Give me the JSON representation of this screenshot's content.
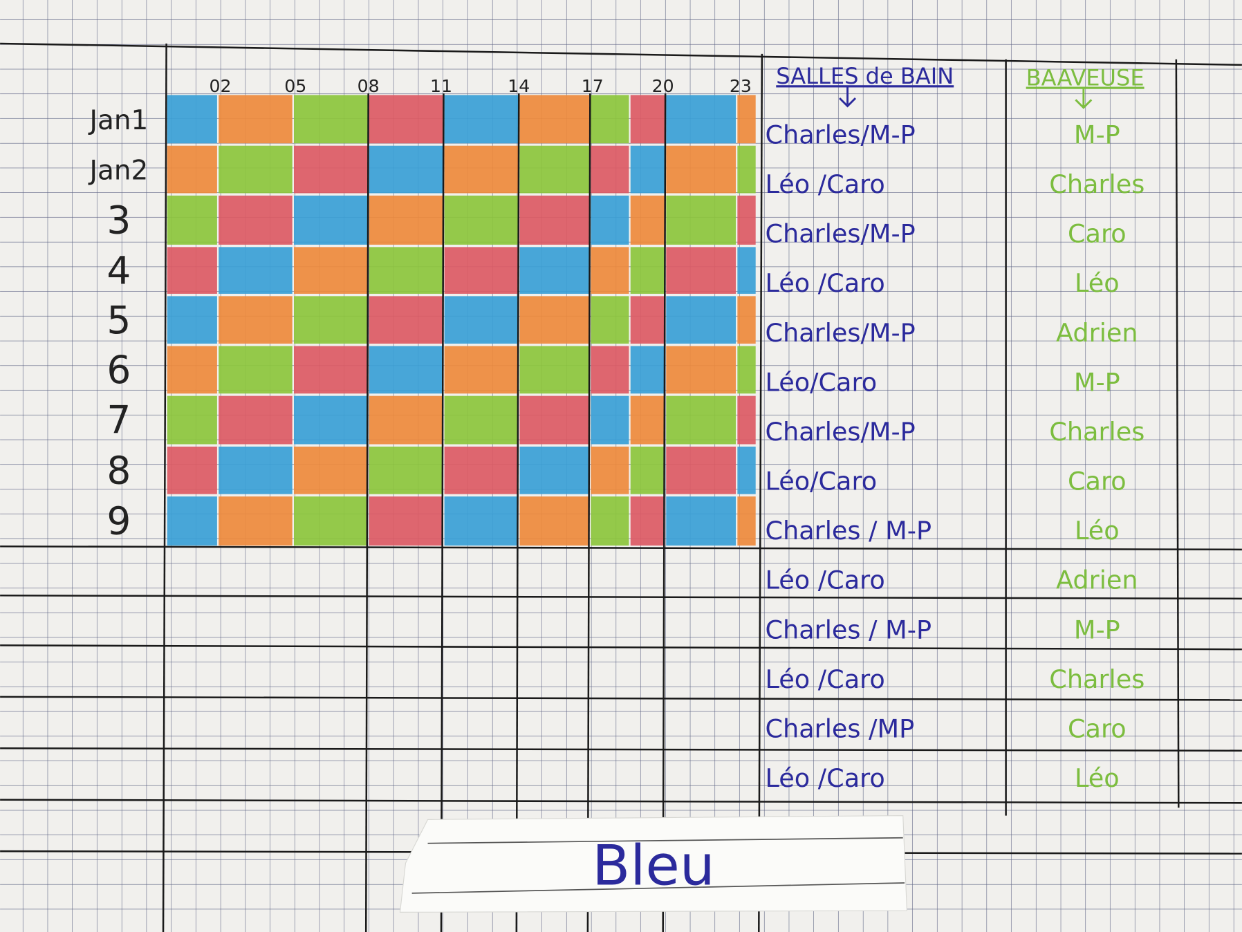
{
  "hours": [
    "02",
    "05",
    "08",
    "11",
    "14",
    "17",
    "20",
    "23"
  ],
  "days": [
    "Jan1",
    "Jan2",
    "3",
    "4",
    "5",
    "6",
    "7",
    "8",
    "9"
  ],
  "grid": {
    "palette": {
      "b": "#3a9fd6",
      "o": "#ee8a3c",
      "g": "#8cc63c",
      "r": "#dc5a64"
    },
    "rows": [
      [
        "b",
        "o",
        "g",
        "r",
        "b",
        "o",
        "g",
        "r",
        "b",
        "o"
      ],
      [
        "o",
        "g",
        "r",
        "b",
        "o",
        "g",
        "r",
        "b",
        "o",
        "g"
      ],
      [
        "g",
        "r",
        "b",
        "o",
        "g",
        "r",
        "b",
        "o",
        "g",
        "r"
      ],
      [
        "r",
        "b",
        "o",
        "g",
        "r",
        "b",
        "o",
        "g",
        "r",
        "b"
      ],
      [
        "b",
        "o",
        "g",
        "r",
        "b",
        "o",
        "g",
        "r",
        "b",
        "o"
      ],
      [
        "o",
        "g",
        "r",
        "b",
        "o",
        "g",
        "r",
        "b",
        "o",
        "g"
      ],
      [
        "g",
        "r",
        "b",
        "o",
        "g",
        "r",
        "b",
        "o",
        "g",
        "r"
      ],
      [
        "r",
        "b",
        "o",
        "g",
        "r",
        "b",
        "o",
        "g",
        "r",
        "b"
      ],
      [
        "b",
        "o",
        "g",
        "r",
        "b",
        "o",
        "g",
        "r",
        "b",
        "o"
      ]
    ]
  },
  "bathrooms": {
    "title": "SALLES de BAIN",
    "entries": [
      "Charles/M-P",
      "Léo /Caro",
      "Charles/M-P",
      "Léo /Caro",
      "Charles/M-P",
      "Léo/Caro",
      "Charles/M-P",
      "Léo/Caro",
      "Charles / M-P",
      "Léo /Caro",
      "Charles / M-P",
      "Léo /Caro",
      "Charles /MP",
      "Léo /Caro"
    ]
  },
  "baveuse": {
    "title": "BAAVEUSE",
    "entries": [
      "M-P",
      "Charles",
      "Caro",
      "Léo",
      "Adrien",
      "M-P",
      "Charles",
      "Caro",
      "Léo",
      "Adrien",
      "M-P",
      "Charles",
      "Caro",
      "Léo"
    ]
  },
  "label": "Bleu"
}
